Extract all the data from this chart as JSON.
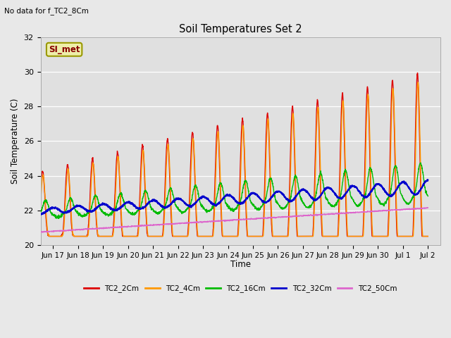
{
  "title": "Soil Temperatures Set 2",
  "subtitle": "No data for f_TC2_8Cm",
  "ylabel": "Soil Temperature (C)",
  "xlabel": "Time",
  "ylim": [
    20,
    32
  ],
  "fig_facecolor": "#e8e8e8",
  "plot_facecolor": "#e0e0e0",
  "grid_color": "#ffffff",
  "annotation_label": "SI_met",
  "annotation_color": "#880000",
  "annotation_bg": "#eeeeaa",
  "annotation_border": "#999900",
  "series_names": [
    "TC2_2Cm",
    "TC2_4Cm",
    "TC2_16Cm",
    "TC2_32Cm",
    "TC2_50Cm"
  ],
  "series_colors": [
    "#dd0000",
    "#ff9900",
    "#00bb00",
    "#0000cc",
    "#dd66cc"
  ],
  "series_lw": [
    1.0,
    1.0,
    1.0,
    1.5,
    1.0
  ],
  "xtick_labels": [
    "Jun 17",
    "Jun 18",
    "Jun 19",
    "Jun 20",
    "Jun 21",
    "Jun 22",
    "Jun 23",
    "Jun 24",
    "Jun 25",
    "Jun 26",
    "Jun 27",
    "Jun 28",
    "Jun 29",
    "Jun 30",
    "Jul 1",
    "Jul 2"
  ],
  "ytick_labels": [
    20,
    22,
    24,
    26,
    28,
    30,
    32
  ]
}
